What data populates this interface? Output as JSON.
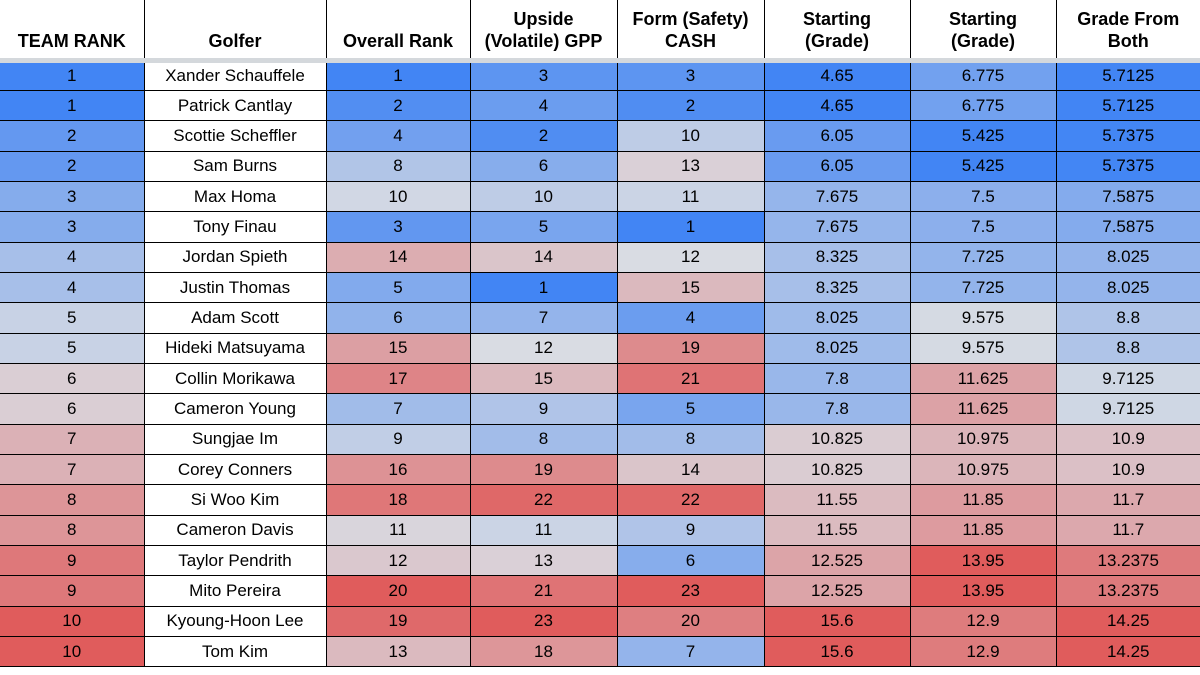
{
  "headers": {
    "team_rank": "TEAM RANK",
    "golfer": "Golfer",
    "overall_rank": "Overall Rank",
    "upside": "Upside\n(Volatile) GPP",
    "form": "Form (Safety)\nCASH",
    "starting1": "Starting\n(Grade)",
    "starting2": "Starting\n(Grade)",
    "grade_both": "Grade From\nBoth"
  },
  "rows": [
    {
      "team_rank": "1",
      "golfer": "Xander Schauffele",
      "overall": "1",
      "upside": "3",
      "form": "3",
      "s1": "4.65",
      "s2": "6.775",
      "both": "5.7125"
    },
    {
      "team_rank": "1",
      "golfer": "Patrick Cantlay",
      "overall": "2",
      "upside": "4",
      "form": "2",
      "s1": "4.65",
      "s2": "6.775",
      "both": "5.7125"
    },
    {
      "team_rank": "2",
      "golfer": "Scottie Scheffler",
      "overall": "4",
      "upside": "2",
      "form": "10",
      "s1": "6.05",
      "s2": "5.425",
      "both": "5.7375"
    },
    {
      "team_rank": "2",
      "golfer": "Sam Burns",
      "overall": "8",
      "upside": "6",
      "form": "13",
      "s1": "6.05",
      "s2": "5.425",
      "both": "5.7375"
    },
    {
      "team_rank": "3",
      "golfer": "Max Homa",
      "overall": "10",
      "upside": "10",
      "form": "11",
      "s1": "7.675",
      "s2": "7.5",
      "both": "7.5875"
    },
    {
      "team_rank": "3",
      "golfer": "Tony Finau",
      "overall": "3",
      "upside": "5",
      "form": "1",
      "s1": "7.675",
      "s2": "7.5",
      "both": "7.5875"
    },
    {
      "team_rank": "4",
      "golfer": "Jordan Spieth",
      "overall": "14",
      "upside": "14",
      "form": "12",
      "s1": "8.325",
      "s2": "7.725",
      "both": "8.025"
    },
    {
      "team_rank": "4",
      "golfer": "Justin Thomas",
      "overall": "5",
      "upside": "1",
      "form": "15",
      "s1": "8.325",
      "s2": "7.725",
      "both": "8.025"
    },
    {
      "team_rank": "5",
      "golfer": "Adam Scott",
      "overall": "6",
      "upside": "7",
      "form": "4",
      "s1": "8.025",
      "s2": "9.575",
      "both": "8.8"
    },
    {
      "team_rank": "5",
      "golfer": "Hideki Matsuyama",
      "overall": "15",
      "upside": "12",
      "form": "19",
      "s1": "8.025",
      "s2": "9.575",
      "both": "8.8"
    },
    {
      "team_rank": "6",
      "golfer": "Collin Morikawa",
      "overall": "17",
      "upside": "15",
      "form": "21",
      "s1": "7.8",
      "s2": "11.625",
      "both": "9.7125"
    },
    {
      "team_rank": "6",
      "golfer": "Cameron Young",
      "overall": "7",
      "upside": "9",
      "form": "5",
      "s1": "7.8",
      "s2": "11.625",
      "both": "9.7125"
    },
    {
      "team_rank": "7",
      "golfer": "Sungjae Im",
      "overall": "9",
      "upside": "8",
      "form": "8",
      "s1": "10.825",
      "s2": "10.975",
      "both": "10.9"
    },
    {
      "team_rank": "7",
      "golfer": "Corey Conners",
      "overall": "16",
      "upside": "19",
      "form": "14",
      "s1": "10.825",
      "s2": "10.975",
      "both": "10.9"
    },
    {
      "team_rank": "8",
      "golfer": "Si Woo Kim",
      "overall": "18",
      "upside": "22",
      "form": "22",
      "s1": "11.55",
      "s2": "11.85",
      "both": "11.7"
    },
    {
      "team_rank": "8",
      "golfer": "Cameron Davis",
      "overall": "11",
      "upside": "11",
      "form": "9",
      "s1": "11.55",
      "s2": "11.85",
      "both": "11.7"
    },
    {
      "team_rank": "9",
      "golfer": "Taylor Pendrith",
      "overall": "12",
      "upside": "13",
      "form": "6",
      "s1": "12.525",
      "s2": "13.95",
      "both": "13.2375"
    },
    {
      "team_rank": "9",
      "golfer": "Mito Pereira",
      "overall": "20",
      "upside": "21",
      "form": "23",
      "s1": "12.525",
      "s2": "13.95",
      "both": "13.2375"
    },
    {
      "team_rank": "10",
      "golfer": "Kyoung-Hoon Lee",
      "overall": "19",
      "upside": "23",
      "form": "20",
      "s1": "15.6",
      "s2": "12.9",
      "both": "14.25"
    },
    {
      "team_rank": "10",
      "golfer": "Tom Kim",
      "overall": "13",
      "upside": "18",
      "form": "7",
      "s1": "15.6",
      "s2": "12.9",
      "both": "14.25"
    }
  ],
  "colors": {
    "low": "#4285f4",
    "mid": "#d9dce3",
    "high": "#e05c5c",
    "golfer_bg": "#ffffff"
  }
}
